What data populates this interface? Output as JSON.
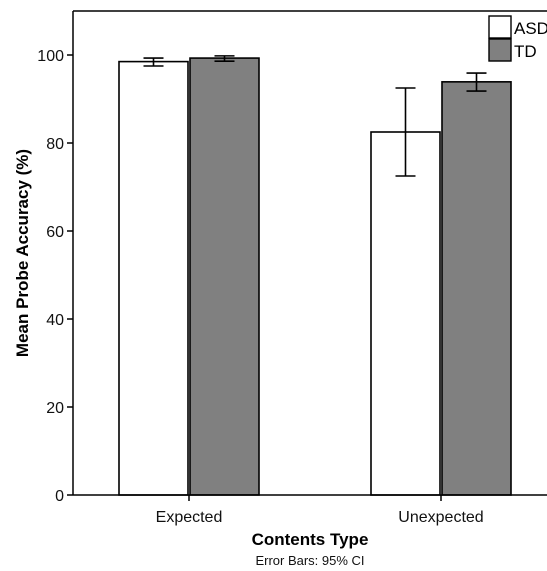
{
  "chart_data": {
    "type": "bar",
    "title": "",
    "xlabel": "Contents Type",
    "ylabel": "Mean Probe Accuracy (%)",
    "caption": "Error Bars: 95% CI",
    "ylim": [
      0,
      110
    ],
    "yticks": [
      0,
      20,
      40,
      60,
      80,
      100
    ],
    "categories": [
      "Expected",
      "Unexpected"
    ],
    "series": [
      {
        "name": "ASD",
        "color": "#ffffff",
        "values": [
          98.5,
          82.5
        ],
        "ci_lower": [
          97.5,
          72.5
        ],
        "ci_upper": [
          99.3,
          92.5
        ]
      },
      {
        "name": "TD",
        "color": "#808080",
        "values": [
          99.3,
          93.9
        ],
        "ci_lower": [
          98.6,
          91.8
        ],
        "ci_upper": [
          99.8,
          95.9
        ]
      }
    ],
    "legend": {
      "position": "top-right"
    },
    "grid": false
  }
}
